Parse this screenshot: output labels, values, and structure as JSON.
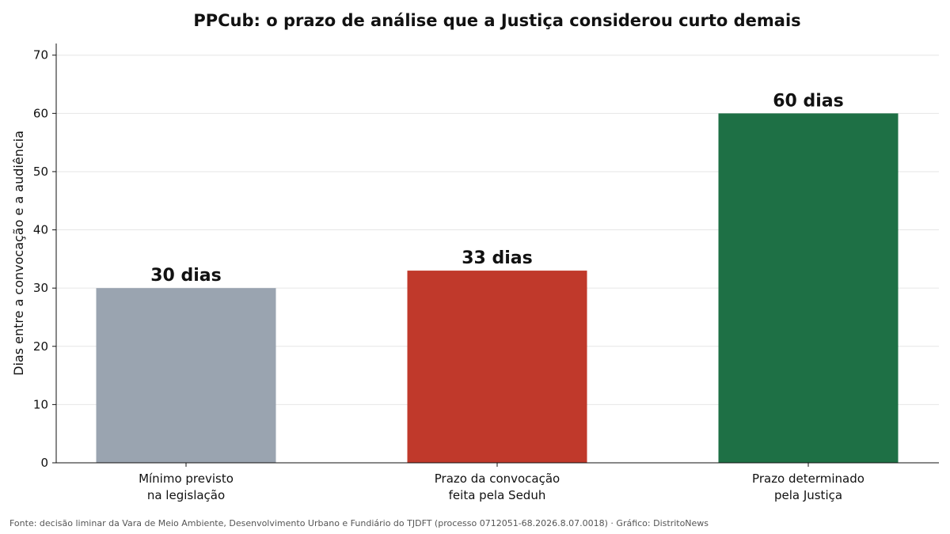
{
  "chart_data": {
    "type": "bar",
    "title": "PPCub: o prazo de análise que a Justiça considerou curto demais",
    "xlabel": "",
    "ylabel": "Dias entre a convocação e a audiência",
    "categories": [
      [
        "Mínimo previsto",
        "na legislação"
      ],
      [
        "Prazo da convocação",
        "feita pela Seduh"
      ],
      [
        "Prazo determinado",
        "pela Justiça"
      ]
    ],
    "values": [
      30,
      33,
      60
    ],
    "data_labels": [
      "30 dias",
      "33 dias",
      "60 dias"
    ],
    "colors": [
      "#9aa4b0",
      "#c0392b",
      "#1e7045"
    ],
    "ylim": [
      0,
      72
    ],
    "yticks": [
      0,
      10,
      20,
      30,
      40,
      50,
      60,
      70
    ],
    "grid": "horizontal",
    "source": "Fonte: decisão liminar da Vara de Meio Ambiente, Desenvolvimento Urbano e Fundiário do TJDFT (processo 0712051-68.2026.8.07.0018) · Gráfico: DistritoNews"
  }
}
